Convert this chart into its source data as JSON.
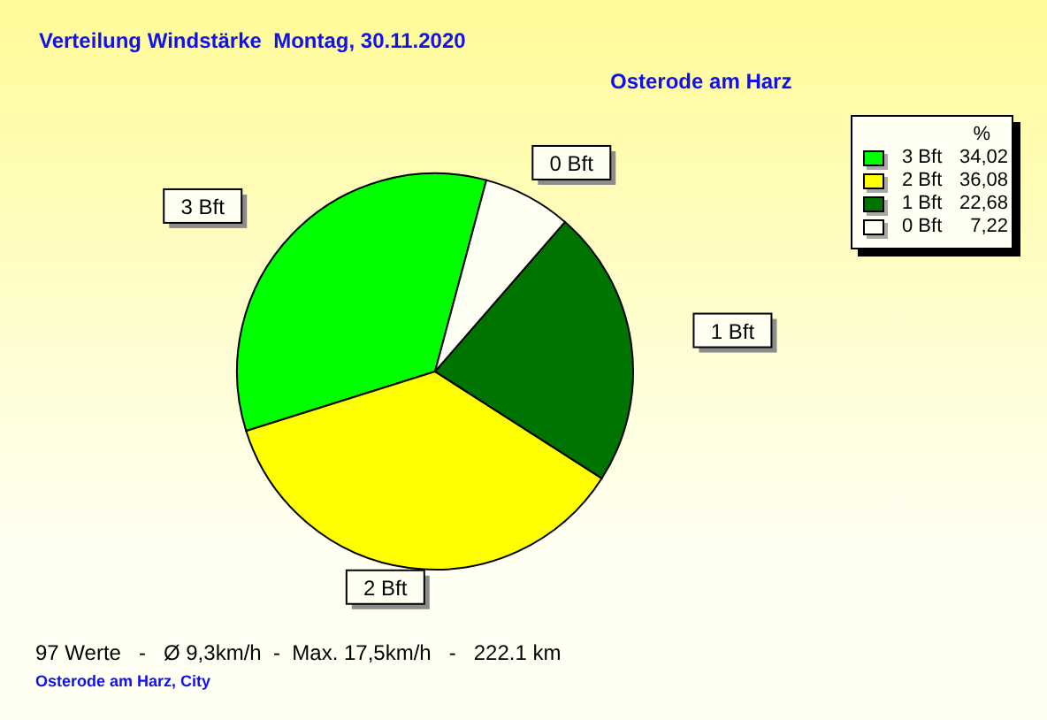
{
  "chart_data": {
    "type": "pie",
    "title": "Verteilung Windstärke  Montag, 30.11.2020",
    "subtitle": "Osterode am Harz",
    "categories": [
      "3 Bft",
      "2 Bft",
      "1 Bft",
      "0 Bft"
    ],
    "values": [
      34.02,
      36.08,
      22.68,
      7.22
    ],
    "colors": [
      "#00ff00",
      "#ffff00",
      "#007400",
      "#fffff4"
    ],
    "value_labels": [
      "34,02",
      "36,08",
      "22,68",
      "7,22"
    ],
    "legend": "top right",
    "legend_title": "%",
    "annotations": [
      "97 Werte   -   Ø 9,3km/h  -  Max. 17,5km/h   -   222.1 km",
      "Osterode am Harz, City"
    ]
  }
}
